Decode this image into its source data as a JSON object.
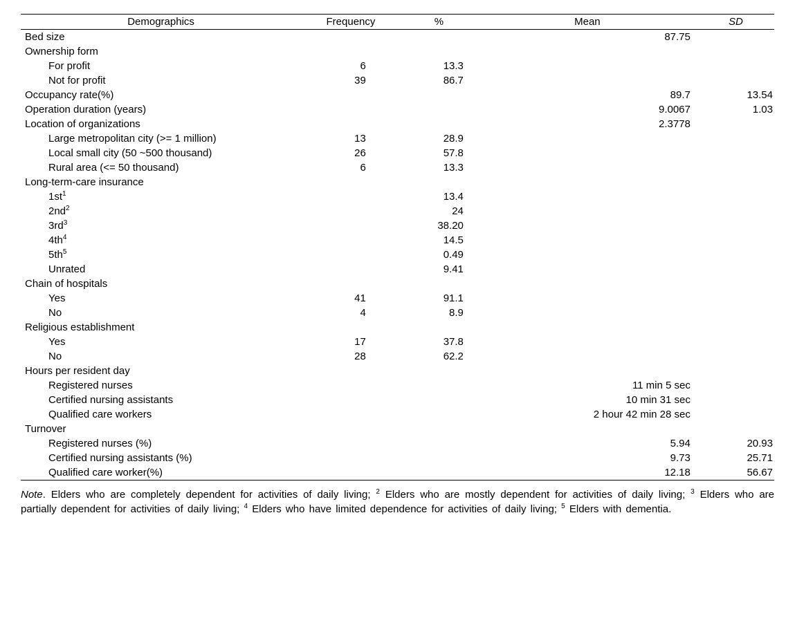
{
  "headers": {
    "demographics": "Demographics",
    "frequency": "Frequency",
    "percent": "%",
    "mean": "Mean",
    "sd": "SD"
  },
  "rows": [
    {
      "label": "Bed size",
      "indent": 0,
      "freq": "",
      "pct": "",
      "mean": "87.75",
      "sd": ""
    },
    {
      "label": "Ownership form",
      "indent": 0,
      "freq": "",
      "pct": "",
      "mean": "",
      "sd": ""
    },
    {
      "label": "For profit",
      "indent": 1,
      "freq": "6",
      "pct": "13.3",
      "mean": "",
      "sd": ""
    },
    {
      "label": "Not for profit",
      "indent": 1,
      "freq": "39",
      "pct": "86.7",
      "mean": "",
      "sd": ""
    },
    {
      "label": "Occupancy rate(%)",
      "indent": 0,
      "freq": "",
      "pct": "",
      "mean": "89.7",
      "sd": "13.54"
    },
    {
      "label": "Operation duration (years)",
      "indent": 0,
      "freq": "",
      "pct": "",
      "mean": "9.0067",
      "sd": "1.03"
    },
    {
      "label": "Location of organizations",
      "indent": 0,
      "freq": "",
      "pct": "",
      "mean": "2.3778",
      "sd": ""
    },
    {
      "label": "Large metropolitan city (>= 1 million)",
      "indent": 1,
      "freq": "13",
      "pct": "28.9",
      "mean": "",
      "sd": ""
    },
    {
      "label": "Local small city (50 ~500 thousand)",
      "indent": 1,
      "freq": "26",
      "pct": "57.8",
      "mean": "",
      "sd": ""
    },
    {
      "label": "Rural area (<= 50 thousand)",
      "indent": 1,
      "freq": "6",
      "pct": "13.3",
      "mean": "",
      "sd": ""
    },
    {
      "label": "Long-term-care insurance",
      "indent": 0,
      "freq": "",
      "pct": "",
      "mean": "",
      "sd": ""
    },
    {
      "label": "1st",
      "sup": "1",
      "indent": 1,
      "freq": "",
      "pct": "13.4",
      "mean": "",
      "sd": ""
    },
    {
      "label": "2nd",
      "sup": "2",
      "indent": 1,
      "freq": "",
      "pct": "24",
      "mean": "",
      "sd": ""
    },
    {
      "label": "3rd",
      "sup": "3",
      "indent": 1,
      "freq": "",
      "pct": "38.20",
      "mean": "",
      "sd": ""
    },
    {
      "label": "4th",
      "sup": "4",
      "indent": 1,
      "freq": "",
      "pct": "14.5",
      "mean": "",
      "sd": ""
    },
    {
      "label": "5th",
      "sup": "5",
      "indent": 1,
      "freq": "",
      "pct": "0.49",
      "mean": "",
      "sd": ""
    },
    {
      "label": "Unrated",
      "indent": 1,
      "freq": "",
      "pct": "9.41",
      "mean": "",
      "sd": ""
    },
    {
      "label": "Chain of hospitals",
      "indent": 0,
      "freq": "",
      "pct": "",
      "mean": "",
      "sd": ""
    },
    {
      "label": "Yes",
      "indent": 1,
      "freq": "41",
      "pct": "91.1",
      "mean": "",
      "sd": ""
    },
    {
      "label": "No",
      "indent": 1,
      "freq": "4",
      "pct": "8.9",
      "mean": "",
      "sd": ""
    },
    {
      "label": "Religious establishment",
      "indent": 0,
      "freq": "",
      "pct": "",
      "mean": "",
      "sd": ""
    },
    {
      "label": "Yes",
      "indent": 1,
      "freq": "17",
      "pct": "37.8",
      "mean": "",
      "sd": ""
    },
    {
      "label": "No",
      "indent": 1,
      "freq": "28",
      "pct": "62.2",
      "mean": "",
      "sd": ""
    },
    {
      "label": "Hours per resident day",
      "indent": 0,
      "freq": "",
      "pct": "",
      "mean": "",
      "sd": ""
    },
    {
      "label": "Registered nurses",
      "indent": 1,
      "freq": "",
      "pct": "",
      "mean": "11 min 5 sec",
      "sd": ""
    },
    {
      "label": "Certified nursing assistants",
      "indent": 1,
      "freq": "",
      "pct": "",
      "mean": "10 min 31 sec",
      "sd": ""
    },
    {
      "label": "Qualified care workers",
      "indent": 1,
      "freq": "",
      "pct": "",
      "mean": "2 hour 42 min 28 sec",
      "sd": ""
    },
    {
      "label": "Turnover",
      "indent": 0,
      "freq": "",
      "pct": "",
      "mean": "",
      "sd": ""
    },
    {
      "label": "Registered nurses (%)",
      "indent": 1,
      "freq": "",
      "pct": "",
      "mean": "5.94",
      "sd": "20.93"
    },
    {
      "label": "Certified nursing assistants (%)",
      "indent": 1,
      "freq": "",
      "pct": "",
      "mean": "9.73",
      "sd": "25.71"
    },
    {
      "label": "Qualified care worker(%)",
      "indent": 1,
      "freq": "",
      "pct": "",
      "mean": "12.18",
      "sd": "56.67"
    }
  ],
  "note": {
    "prefix": "Note",
    "segments": [
      {
        "text": ". Elders who are completely dependent for activities of daily living; "
      },
      {
        "sup": "2",
        "text": " Elders who are mostly dependent for activities of daily living; "
      },
      {
        "sup": "3",
        "text": " Elders who are partially dependent for activities of daily living; "
      },
      {
        "sup": "4",
        "text": " Elders who have limited dependence for activities of daily living; "
      },
      {
        "sup": "5",
        "text": " Elders with dementia."
      }
    ]
  }
}
